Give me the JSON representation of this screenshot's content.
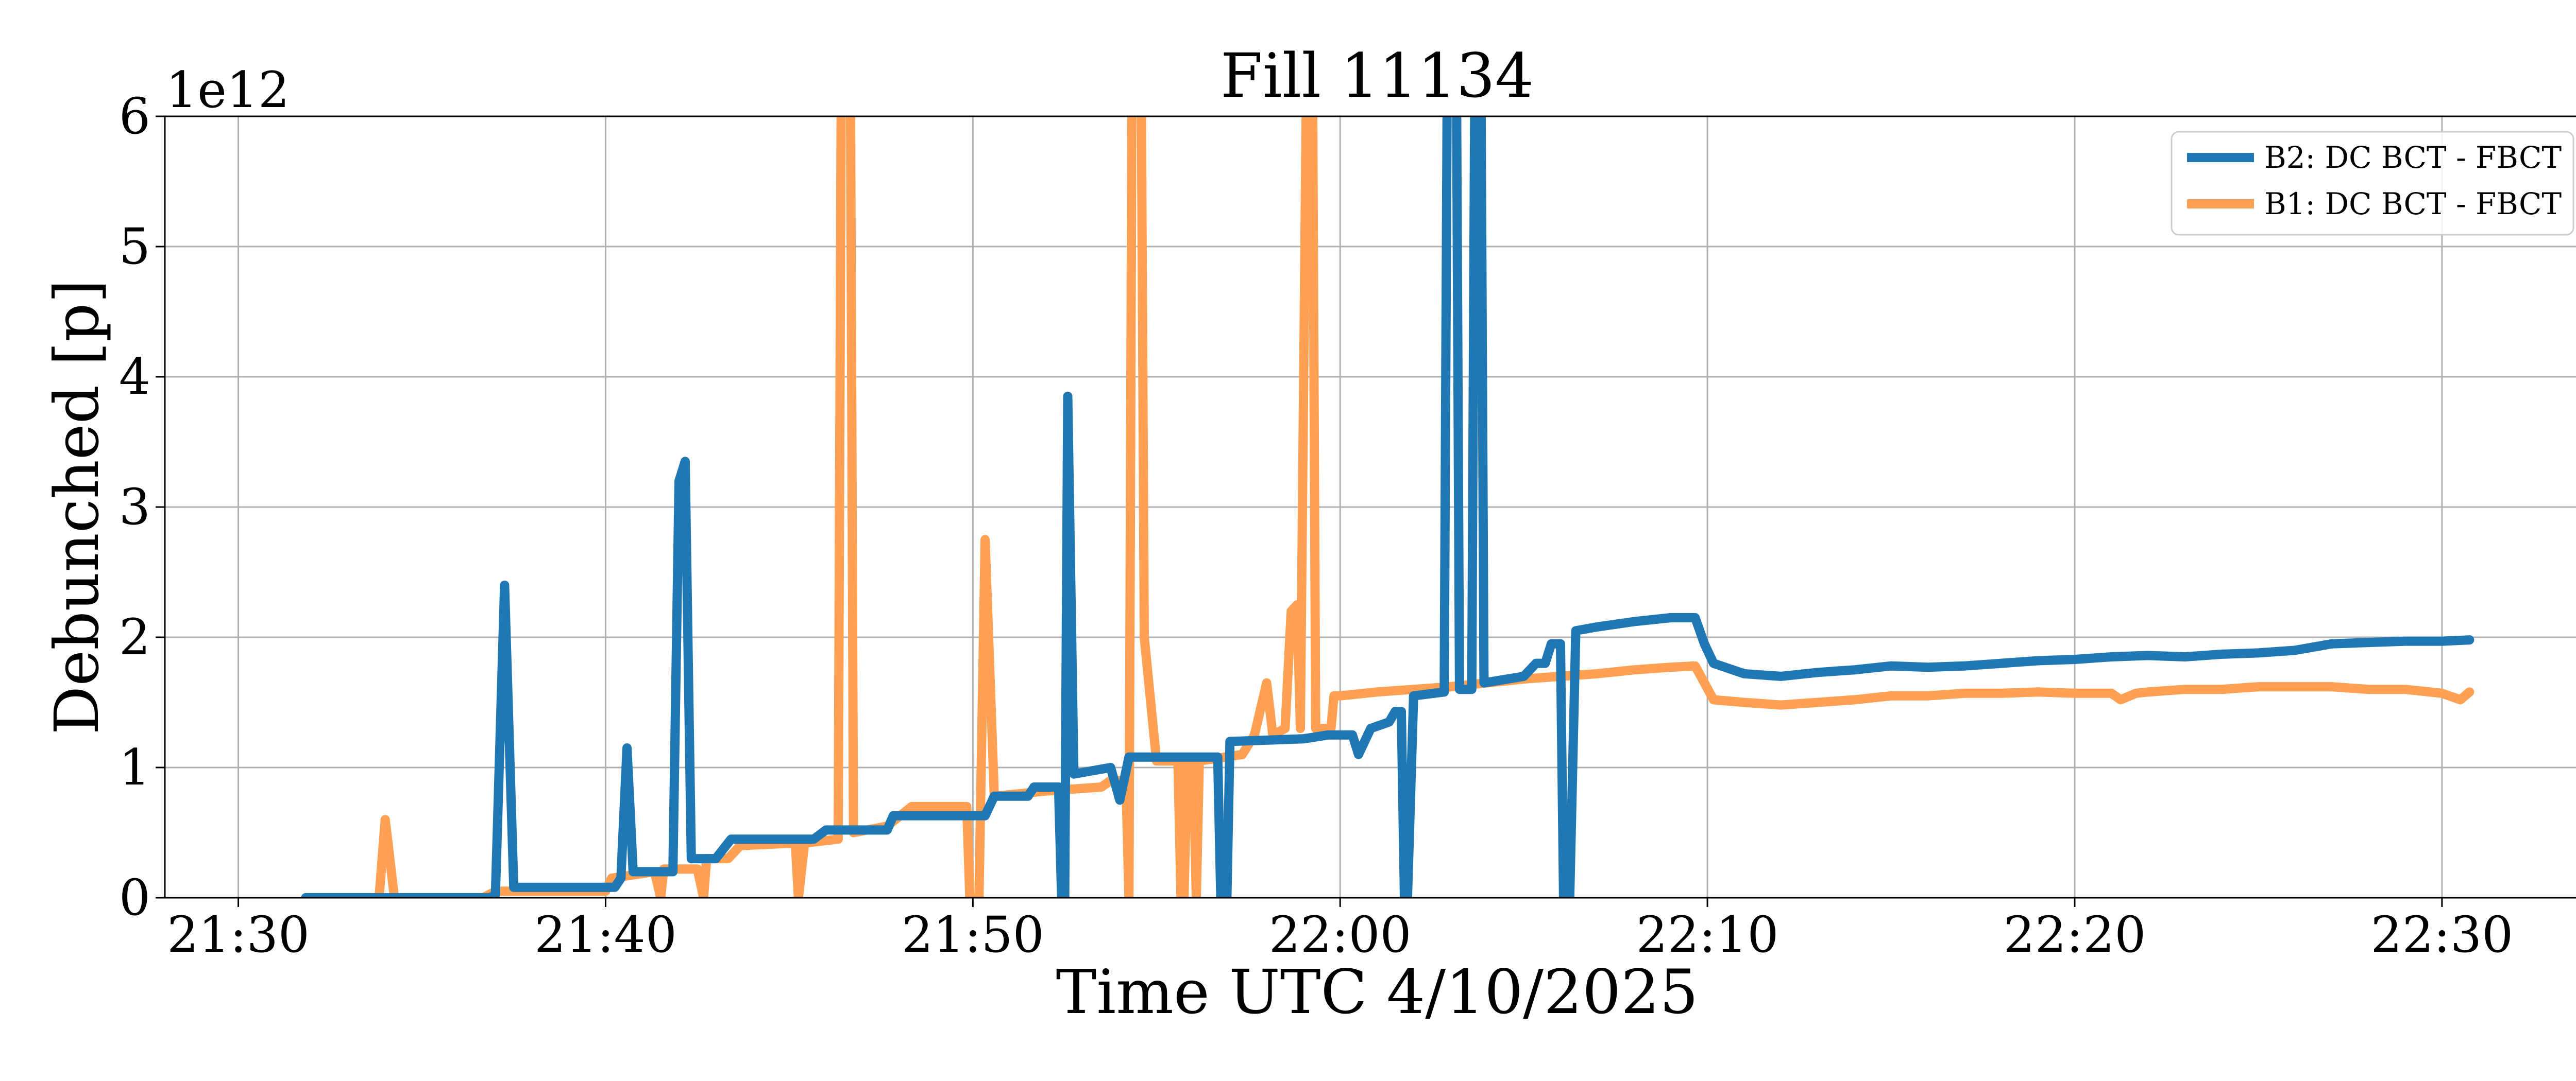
{
  "chart_data": {
    "type": "line",
    "title": "Fill 11134",
    "xlabel": "Time UTC 4/10/2025",
    "ylabel": "Debunched [p]",
    "y_offset_label": "1e12",
    "xlim": [
      "21:28",
      "22:34"
    ],
    "ylim": [
      0,
      6
    ],
    "y_scale_factor": 1000000000000.0,
    "grid": true,
    "legend_position": "top-right",
    "x_ticks": [
      "21:30",
      "21:40",
      "21:50",
      "22:00",
      "22:10",
      "22:20",
      "22:30"
    ],
    "y_ticks": [
      "0",
      "1",
      "2",
      "3",
      "4",
      "5",
      "6"
    ],
    "series": [
      {
        "name": "B2: DC BCT - FBCT",
        "color": "#1f77b4",
        "points": [
          [
            "21:31:50",
            0.0
          ],
          [
            "21:36:50",
            0.0
          ],
          [
            "21:37:00",
            0.02
          ],
          [
            "21:37:15",
            2.4
          ],
          [
            "21:37:30",
            0.08
          ],
          [
            "21:40:15",
            0.08
          ],
          [
            "21:40:25",
            0.15
          ],
          [
            "21:40:35",
            1.15
          ],
          [
            "21:40:45",
            0.2
          ],
          [
            "21:41:50",
            0.2
          ],
          [
            "21:42:00",
            3.2
          ],
          [
            "21:42:10",
            3.35
          ],
          [
            "21:42:20",
            0.3
          ],
          [
            "21:43:00",
            0.3
          ],
          [
            "21:43:25",
            0.45
          ],
          [
            "21:45:40",
            0.45
          ],
          [
            "21:46:00",
            0.52
          ],
          [
            "21:47:40",
            0.52
          ],
          [
            "21:47:50",
            0.63
          ],
          [
            "21:50:20",
            0.63
          ],
          [
            "21:50:35",
            0.78
          ],
          [
            "21:51:30",
            0.78
          ],
          [
            "21:51:40",
            0.85
          ],
          [
            "21:52:20",
            0.85
          ],
          [
            "21:52:25",
            0.0
          ],
          [
            "21:52:30",
            0.0
          ],
          [
            "21:52:35",
            3.85
          ],
          [
            "21:52:45",
            0.95
          ],
          [
            "21:53:45",
            1.0
          ],
          [
            "21:54:00",
            0.75
          ],
          [
            "21:54:15",
            1.08
          ],
          [
            "21:56:40",
            1.08
          ],
          [
            "21:56:45",
            0.0
          ],
          [
            "21:56:55",
            0.0
          ],
          [
            "21:57:00",
            1.2
          ],
          [
            "21:59:00",
            1.22
          ],
          [
            "21:59:40",
            1.25
          ],
          [
            "22:00:20",
            1.25
          ],
          [
            "22:00:30",
            1.1
          ],
          [
            "22:00:50",
            1.3
          ],
          [
            "22:01:20",
            1.35
          ],
          [
            "22:01:30",
            1.43
          ],
          [
            "22:01:40",
            1.43
          ],
          [
            "22:01:45",
            0.0
          ],
          [
            "22:01:50",
            0.0
          ],
          [
            "22:02:00",
            1.55
          ],
          [
            "22:02:50",
            1.58
          ],
          [
            "22:02:55",
            6.3
          ],
          [
            "22:03:10",
            6.3
          ],
          [
            "22:03:15",
            1.6
          ],
          [
            "22:03:35",
            1.6
          ],
          [
            "22:03:40",
            6.3
          ],
          [
            "22:03:50",
            6.3
          ],
          [
            "22:03:55",
            1.65
          ],
          [
            "22:05:00",
            1.7
          ],
          [
            "22:05:20",
            1.8
          ],
          [
            "22:05:35",
            1.8
          ],
          [
            "22:05:45",
            1.95
          ],
          [
            "22:06:00",
            1.95
          ],
          [
            "22:06:05",
            0.0
          ],
          [
            "22:06:15",
            0.0
          ],
          [
            "22:06:25",
            2.05
          ],
          [
            "22:07:00",
            2.08
          ],
          [
            "22:08:00",
            2.12
          ],
          [
            "22:09:00",
            2.15
          ],
          [
            "22:09:40",
            2.15
          ],
          [
            "22:09:55",
            1.95
          ],
          [
            "22:10:10",
            1.8
          ],
          [
            "22:11:00",
            1.72
          ],
          [
            "22:12:00",
            1.7
          ],
          [
            "22:13:00",
            1.73
          ],
          [
            "22:14:00",
            1.75
          ],
          [
            "22:15:00",
            1.78
          ],
          [
            "22:16:00",
            1.77
          ],
          [
            "22:17:00",
            1.78
          ],
          [
            "22:18:00",
            1.8
          ],
          [
            "22:19:00",
            1.82
          ],
          [
            "22:20:00",
            1.83
          ],
          [
            "22:21:00",
            1.85
          ],
          [
            "22:22:00",
            1.86
          ],
          [
            "22:23:00",
            1.85
          ],
          [
            "22:24:00",
            1.87
          ],
          [
            "22:25:00",
            1.88
          ],
          [
            "22:26:00",
            1.9
          ],
          [
            "22:27:00",
            1.95
          ],
          [
            "22:28:00",
            1.96
          ],
          [
            "22:29:00",
            1.97
          ],
          [
            "22:30:00",
            1.97
          ],
          [
            "22:30:45",
            1.98
          ]
        ]
      },
      {
        "name": "B1: DC BCT - FBCT",
        "color": "#ffa052",
        "points": [
          [
            "21:31:50",
            0.0
          ],
          [
            "21:33:50",
            0.0
          ],
          [
            "21:34:00",
            0.6
          ],
          [
            "21:34:15",
            0.0
          ],
          [
            "21:36:40",
            0.0
          ],
          [
            "21:37:00",
            0.05
          ],
          [
            "21:40:00",
            0.05
          ],
          [
            "21:40:10",
            0.15
          ],
          [
            "21:41:20",
            0.2
          ],
          [
            "21:41:30",
            0.0
          ],
          [
            "21:41:35",
            0.22
          ],
          [
            "21:42:30",
            0.22
          ],
          [
            "21:42:40",
            0.0
          ],
          [
            "21:42:45",
            0.3
          ],
          [
            "21:43:20",
            0.3
          ],
          [
            "21:43:40",
            0.4
          ],
          [
            "21:45:10",
            0.42
          ],
          [
            "21:45:15",
            0.0
          ],
          [
            "21:45:25",
            0.42
          ],
          [
            "21:46:20",
            0.45
          ],
          [
            "21:46:25",
            6.3
          ],
          [
            "21:46:40",
            6.3
          ],
          [
            "21:46:45",
            0.5
          ],
          [
            "21:47:40",
            0.55
          ],
          [
            "21:48:20",
            0.7
          ],
          [
            "21:49:50",
            0.7
          ],
          [
            "21:49:55",
            0.0
          ],
          [
            "21:50:10",
            0.0
          ],
          [
            "21:50:20",
            2.75
          ],
          [
            "21:50:35",
            0.78
          ],
          [
            "21:51:20",
            0.8
          ],
          [
            "21:52:00",
            0.82
          ],
          [
            "21:53:30",
            0.85
          ],
          [
            "21:53:45",
            0.9
          ],
          [
            "21:54:10",
            0.9
          ],
          [
            "21:54:15",
            0.0
          ],
          [
            "21:54:20",
            6.3
          ],
          [
            "21:54:35",
            6.3
          ],
          [
            "21:54:40",
            2.0
          ],
          [
            "21:55:00",
            1.05
          ],
          [
            "21:55:35",
            1.05
          ],
          [
            "21:55:40",
            0.0
          ],
          [
            "21:55:45",
            0.0
          ],
          [
            "21:55:50",
            1.05
          ],
          [
            "21:56:00",
            1.05
          ],
          [
            "21:56:05",
            0.0
          ],
          [
            "21:56:10",
            1.05
          ],
          [
            "21:57:20",
            1.1
          ],
          [
            "21:57:40",
            1.25
          ],
          [
            "21:58:00",
            1.65
          ],
          [
            "21:58:10",
            1.25
          ],
          [
            "21:58:30",
            1.3
          ],
          [
            "21:58:40",
            2.2
          ],
          [
            "21:58:50",
            2.25
          ],
          [
            "21:58:55",
            1.3
          ],
          [
            "21:59:05",
            6.3
          ],
          [
            "21:59:15",
            6.3
          ],
          [
            "21:59:20",
            1.3
          ],
          [
            "21:59:45",
            1.3
          ],
          [
            "21:59:50",
            1.55
          ],
          [
            "22:00:00",
            1.55
          ],
          [
            "22:01:00",
            1.58
          ],
          [
            "22:02:00",
            1.6
          ],
          [
            "22:03:00",
            1.62
          ],
          [
            "22:04:00",
            1.65
          ],
          [
            "22:05:00",
            1.68
          ],
          [
            "22:06:00",
            1.7
          ],
          [
            "22:07:00",
            1.72
          ],
          [
            "22:08:00",
            1.75
          ],
          [
            "22:09:00",
            1.77
          ],
          [
            "22:09:40",
            1.78
          ],
          [
            "22:09:55",
            1.65
          ],
          [
            "22:10:10",
            1.52
          ],
          [
            "22:11:00",
            1.5
          ],
          [
            "22:12:00",
            1.48
          ],
          [
            "22:13:00",
            1.5
          ],
          [
            "22:14:00",
            1.52
          ],
          [
            "22:15:00",
            1.55
          ],
          [
            "22:16:00",
            1.55
          ],
          [
            "22:17:00",
            1.57
          ],
          [
            "22:18:00",
            1.57
          ],
          [
            "22:19:00",
            1.58
          ],
          [
            "22:20:00",
            1.57
          ],
          [
            "22:21:00",
            1.57
          ],
          [
            "22:21:15",
            1.52
          ],
          [
            "22:21:40",
            1.57
          ],
          [
            "22:22:00",
            1.58
          ],
          [
            "22:23:00",
            1.6
          ],
          [
            "22:24:00",
            1.6
          ],
          [
            "22:25:00",
            1.62
          ],
          [
            "22:26:00",
            1.62
          ],
          [
            "22:27:00",
            1.62
          ],
          [
            "22:28:00",
            1.6
          ],
          [
            "22:29:00",
            1.6
          ],
          [
            "22:30:00",
            1.57
          ],
          [
            "22:30:30",
            1.52
          ],
          [
            "22:30:45",
            1.58
          ]
        ]
      }
    ]
  }
}
